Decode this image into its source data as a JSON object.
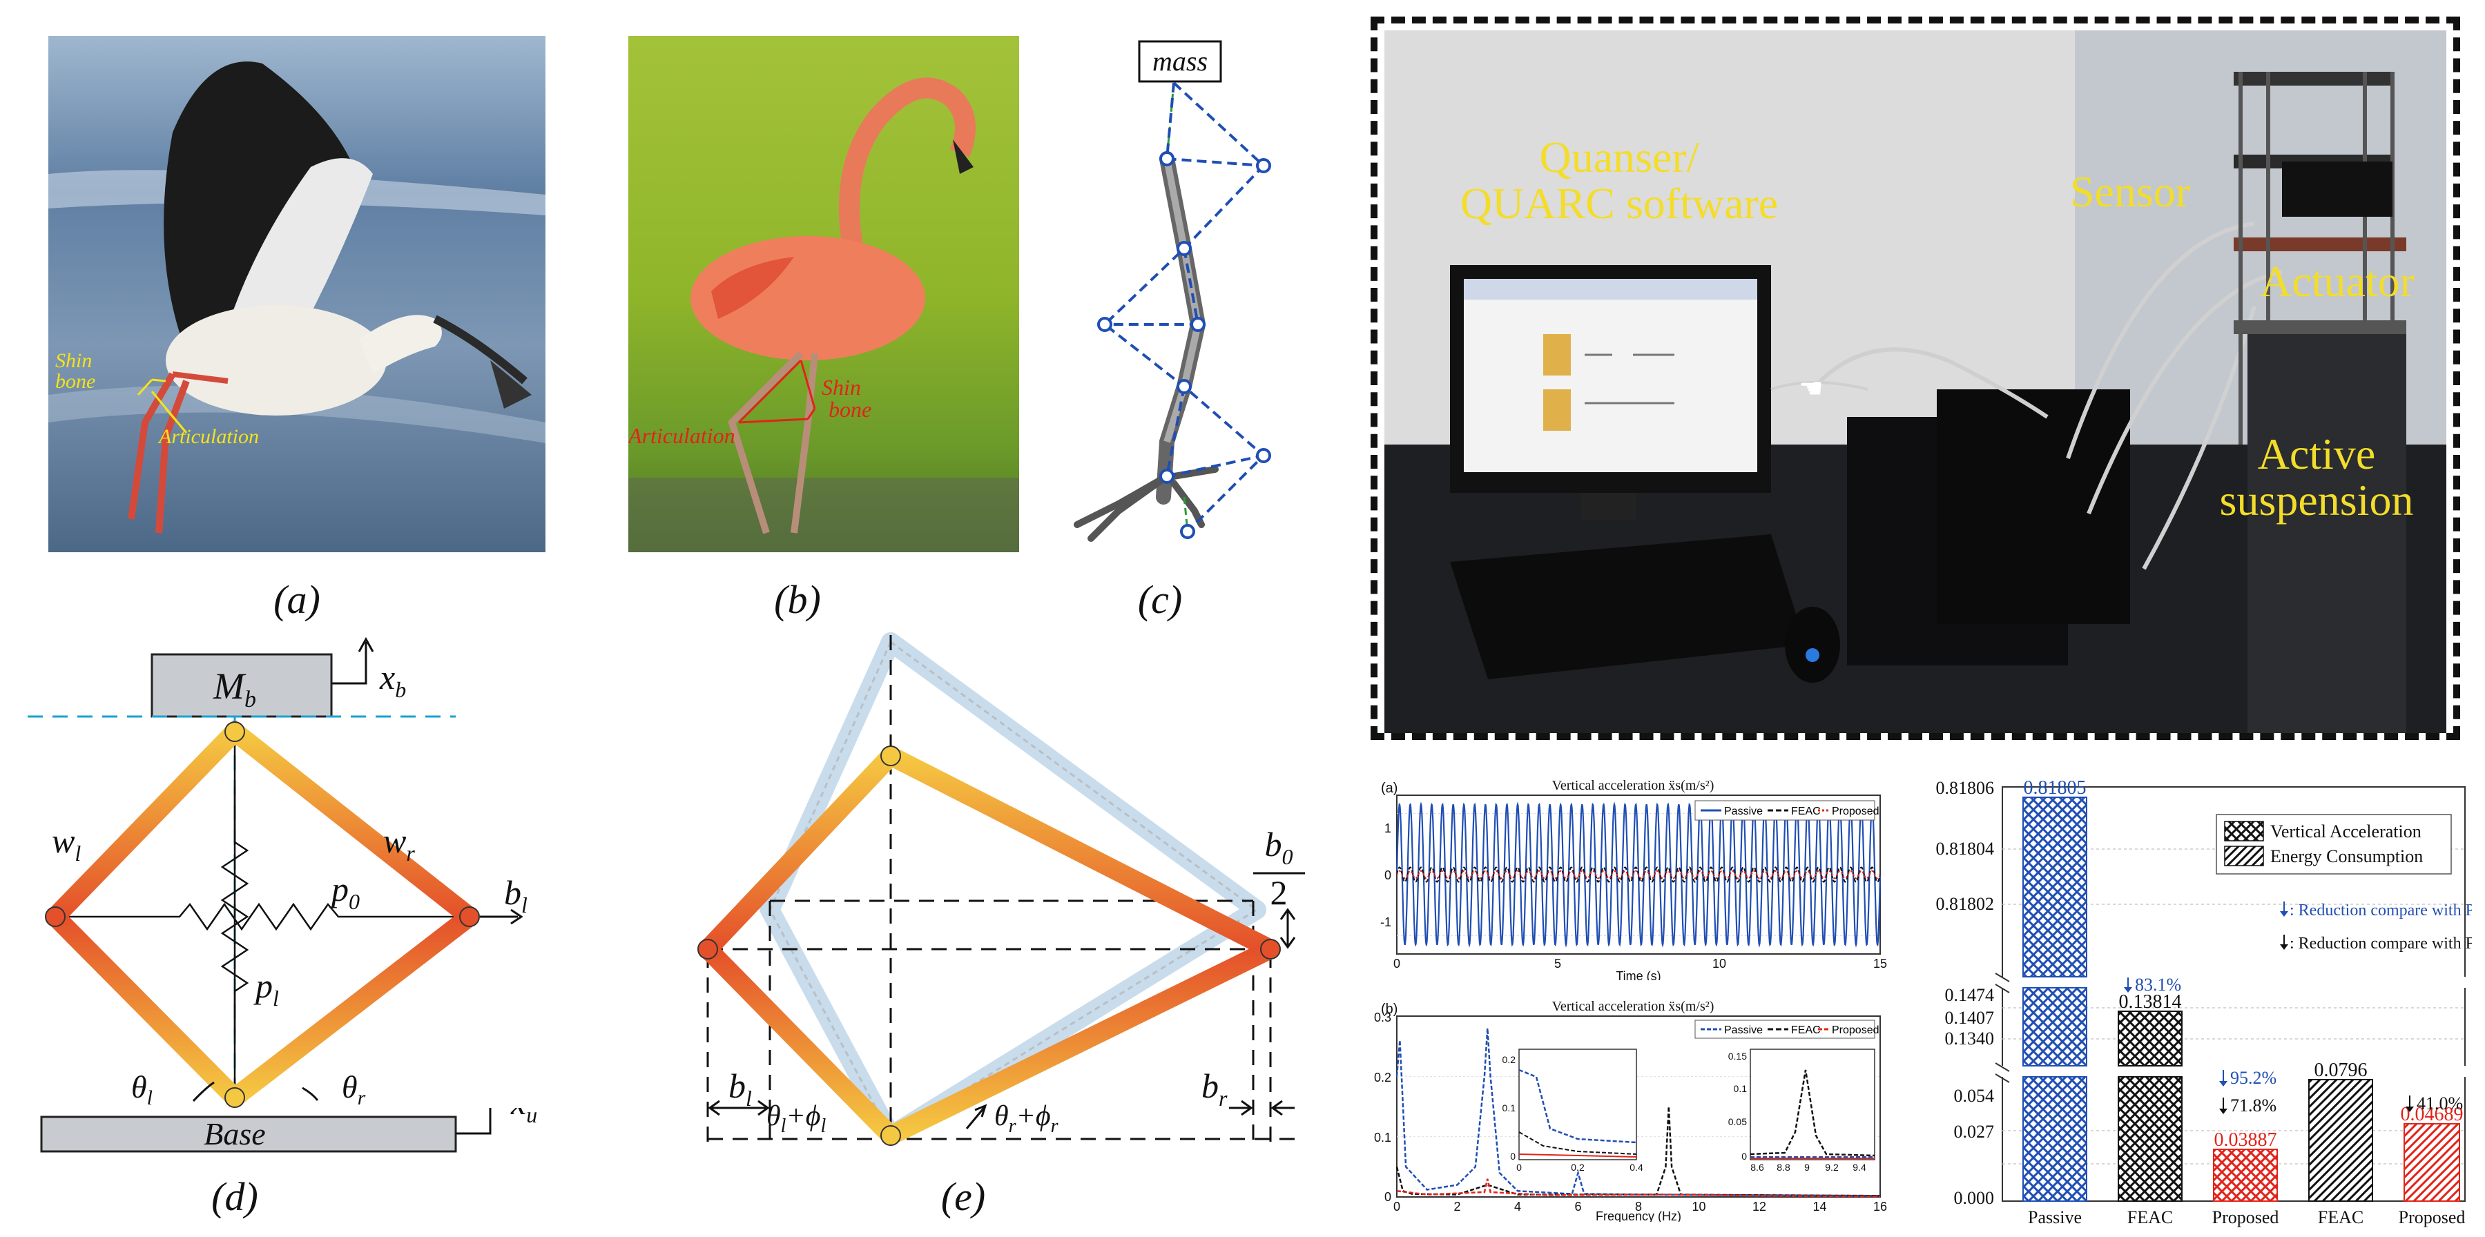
{
  "captions": {
    "a": "(a)",
    "b": "(b)",
    "c": "(c)",
    "d": "(d)",
    "e": "(e)"
  },
  "panel_a": {
    "shin": "Shin",
    "bone": "bone",
    "articulation": "Articulation"
  },
  "panel_b": {
    "shin": "Shin",
    "bone": "bone",
    "articulation": "Articulation"
  },
  "panel_c": {
    "mass": "mass"
  },
  "panel_d": {
    "mb": "M",
    "mb_sub": "b",
    "xb": "x",
    "xb_sub": "b",
    "wl": "w",
    "wl_sub": "l",
    "wr": "w",
    "wr_sub": "r",
    "p0": "p",
    "p0_sub": "0",
    "pl": "p",
    "pl_sub": "l",
    "bl": "b",
    "bl_sub": "l",
    "thl": "θ",
    "thl_sub": "l",
    "thr": "θ",
    "thr_sub": "r",
    "base": "Base",
    "xu": "x",
    "xu_sub": "u"
  },
  "panel_e": {
    "b0": "b",
    "b0_sub": "0",
    "two": "2",
    "bl": "b",
    "bl_sub": "l",
    "br": "b",
    "br_sub": "r",
    "thl": "θ",
    "thl_sub": "l",
    "phl": "+ϕ",
    "phl_sub": "l",
    "thr": "θ",
    "thr_sub": "r",
    "phr": "+ϕ",
    "phr_sub": "r"
  },
  "setup": {
    "quanser": "Quanser/\nQUARC software",
    "sensor": "Sensor",
    "actuator": "Actuator",
    "active": "Active\nsuspension"
  },
  "colors": {
    "passive": "#1f4eb4",
    "feac": "#111111",
    "proposed": "#e2231a",
    "leg_top": "#f5c842",
    "leg_bottom": "#e4502a"
  },
  "time_chart": {
    "panel_label": "(a)",
    "title": "Vertical acceleration ẍs(m/s²)",
    "xlabel": "Time (s)",
    "legend": [
      "Passive",
      "FEAC",
      "Proposed"
    ],
    "xticks": [
      "0",
      "5",
      "10",
      "15"
    ],
    "yticks": [
      "1",
      "0",
      "-1"
    ]
  },
  "freq_chart": {
    "panel_label": "(b)",
    "title": "Vertical acceleration ẍs(m/s²)",
    "xlabel": "Frequency (Hz)",
    "legend": [
      "Passive",
      "FEAC",
      "Proposed"
    ],
    "xticks": [
      "0",
      "2",
      "4",
      "6",
      "8",
      "10",
      "12",
      "14",
      "16"
    ],
    "yticks": [
      "0.3",
      "0.2",
      "0.1",
      "0"
    ],
    "inset1_xticks": [
      "0",
      "0.2",
      "0.4"
    ],
    "inset1_yticks": [
      "0.2",
      "0.1",
      "0"
    ],
    "inset2_xticks": [
      "8.6",
      "8.8",
      "9",
      "9.2",
      "9.4"
    ],
    "inset2_yticks": [
      "0.15",
      "0.1",
      "0.05",
      "0"
    ]
  },
  "chart_data": [
    {
      "type": "line",
      "title": "Vertical acceleration ẍs(m/s²)",
      "xlabel": "Time (s)",
      "xlim": [
        0,
        15
      ],
      "ylim": [
        -1.3,
        1.3
      ],
      "series": [
        {
          "name": "Passive",
          "frequency_hz": 3,
          "amplitude": 1.15
        },
        {
          "name": "FEAC",
          "frequency_hz": 3,
          "amplitude": 0.12
        },
        {
          "name": "Proposed",
          "frequency_hz": 3,
          "amplitude": 0.06
        }
      ]
    },
    {
      "type": "line",
      "title": "Vertical acceleration ẍs(m/s²)",
      "xlabel": "Frequency (Hz)",
      "xlim": [
        0,
        16
      ],
      "ylim": [
        0,
        0.3
      ],
      "series": [
        {
          "name": "Passive",
          "x": [
            0,
            0.1,
            0.3,
            1,
            2,
            2.6,
            2.9,
            3,
            3.1,
            3.4,
            4,
            5.8,
            6,
            6.2,
            8,
            12,
            16
          ],
          "y": [
            0.2,
            0.26,
            0.05,
            0.012,
            0.02,
            0.05,
            0.2,
            0.28,
            0.2,
            0.04,
            0.01,
            0.005,
            0.04,
            0.005,
            0.004,
            0.003,
            0.002
          ]
        },
        {
          "name": "FEAC",
          "x": [
            0,
            0.2,
            0.5,
            2,
            3,
            4,
            8.6,
            8.9,
            9,
            9.1,
            9.4,
            12,
            16
          ],
          "y": [
            0.05,
            0.01,
            0.005,
            0.004,
            0.02,
            0.004,
            0.004,
            0.05,
            0.15,
            0.05,
            0.004,
            0.003,
            0.002
          ]
        },
        {
          "name": "Proposed",
          "x": [
            0,
            1,
            2.9,
            3,
            3.1,
            5,
            9,
            12,
            16
          ],
          "y": [
            0.01,
            0.004,
            0.008,
            0.03,
            0.008,
            0.003,
            0.004,
            0.002,
            0.001
          ]
        }
      ]
    },
    {
      "type": "bar",
      "categories": [
        "Passive",
        "FEAC",
        "Proposed",
        "FEAC",
        "Proposed"
      ],
      "series": [
        {
          "name": "Vertical Acceleration",
          "values": [
            0.81805,
            0.13814,
            0.03887,
            null,
            null
          ]
        },
        {
          "name": "Energy Consumption",
          "values": [
            null,
            null,
            null,
            0.0796,
            0.04689
          ]
        }
      ],
      "value_labels": [
        "0.81805",
        "0.13814",
        "0.03887",
        "0.0796",
        "0.04689"
      ],
      "yticks": [
        "0.000",
        "0.027",
        "0.054",
        "0.1340",
        "0.1407",
        "0.1474",
        "0.81802",
        "0.81804",
        "0.81806"
      ],
      "annotations": [
        "83.1%",
        "95.2%",
        "71.8%",
        "41.0%"
      ]
    }
  ],
  "bar_chart": {
    "legend": [
      "Vertical Acceleration",
      "Energy Consumption"
    ],
    "note_passive": ": Reduction compare with Passive",
    "note_feac": ": Reduction compare with FEAC",
    "categories": [
      "Passive",
      "FEAC",
      "Proposed",
      "FEAC",
      "Proposed"
    ],
    "value_labels": [
      "0.81805",
      "0.13814",
      "0.03887",
      "0.0796",
      "0.04689"
    ],
    "pct_feac": "83.1%",
    "pct_prop_blue": "95.2%",
    "pct_prop_black": "71.8%",
    "pct_energy": "41.0%",
    "yticks_top": [
      "0.81806",
      "0.81804",
      "0.81802"
    ],
    "yticks_mid": [
      "0.1474",
      "0.1407",
      "0.1340"
    ],
    "yticks_low": [
      "0.054",
      "0.027",
      "0.000"
    ]
  }
}
